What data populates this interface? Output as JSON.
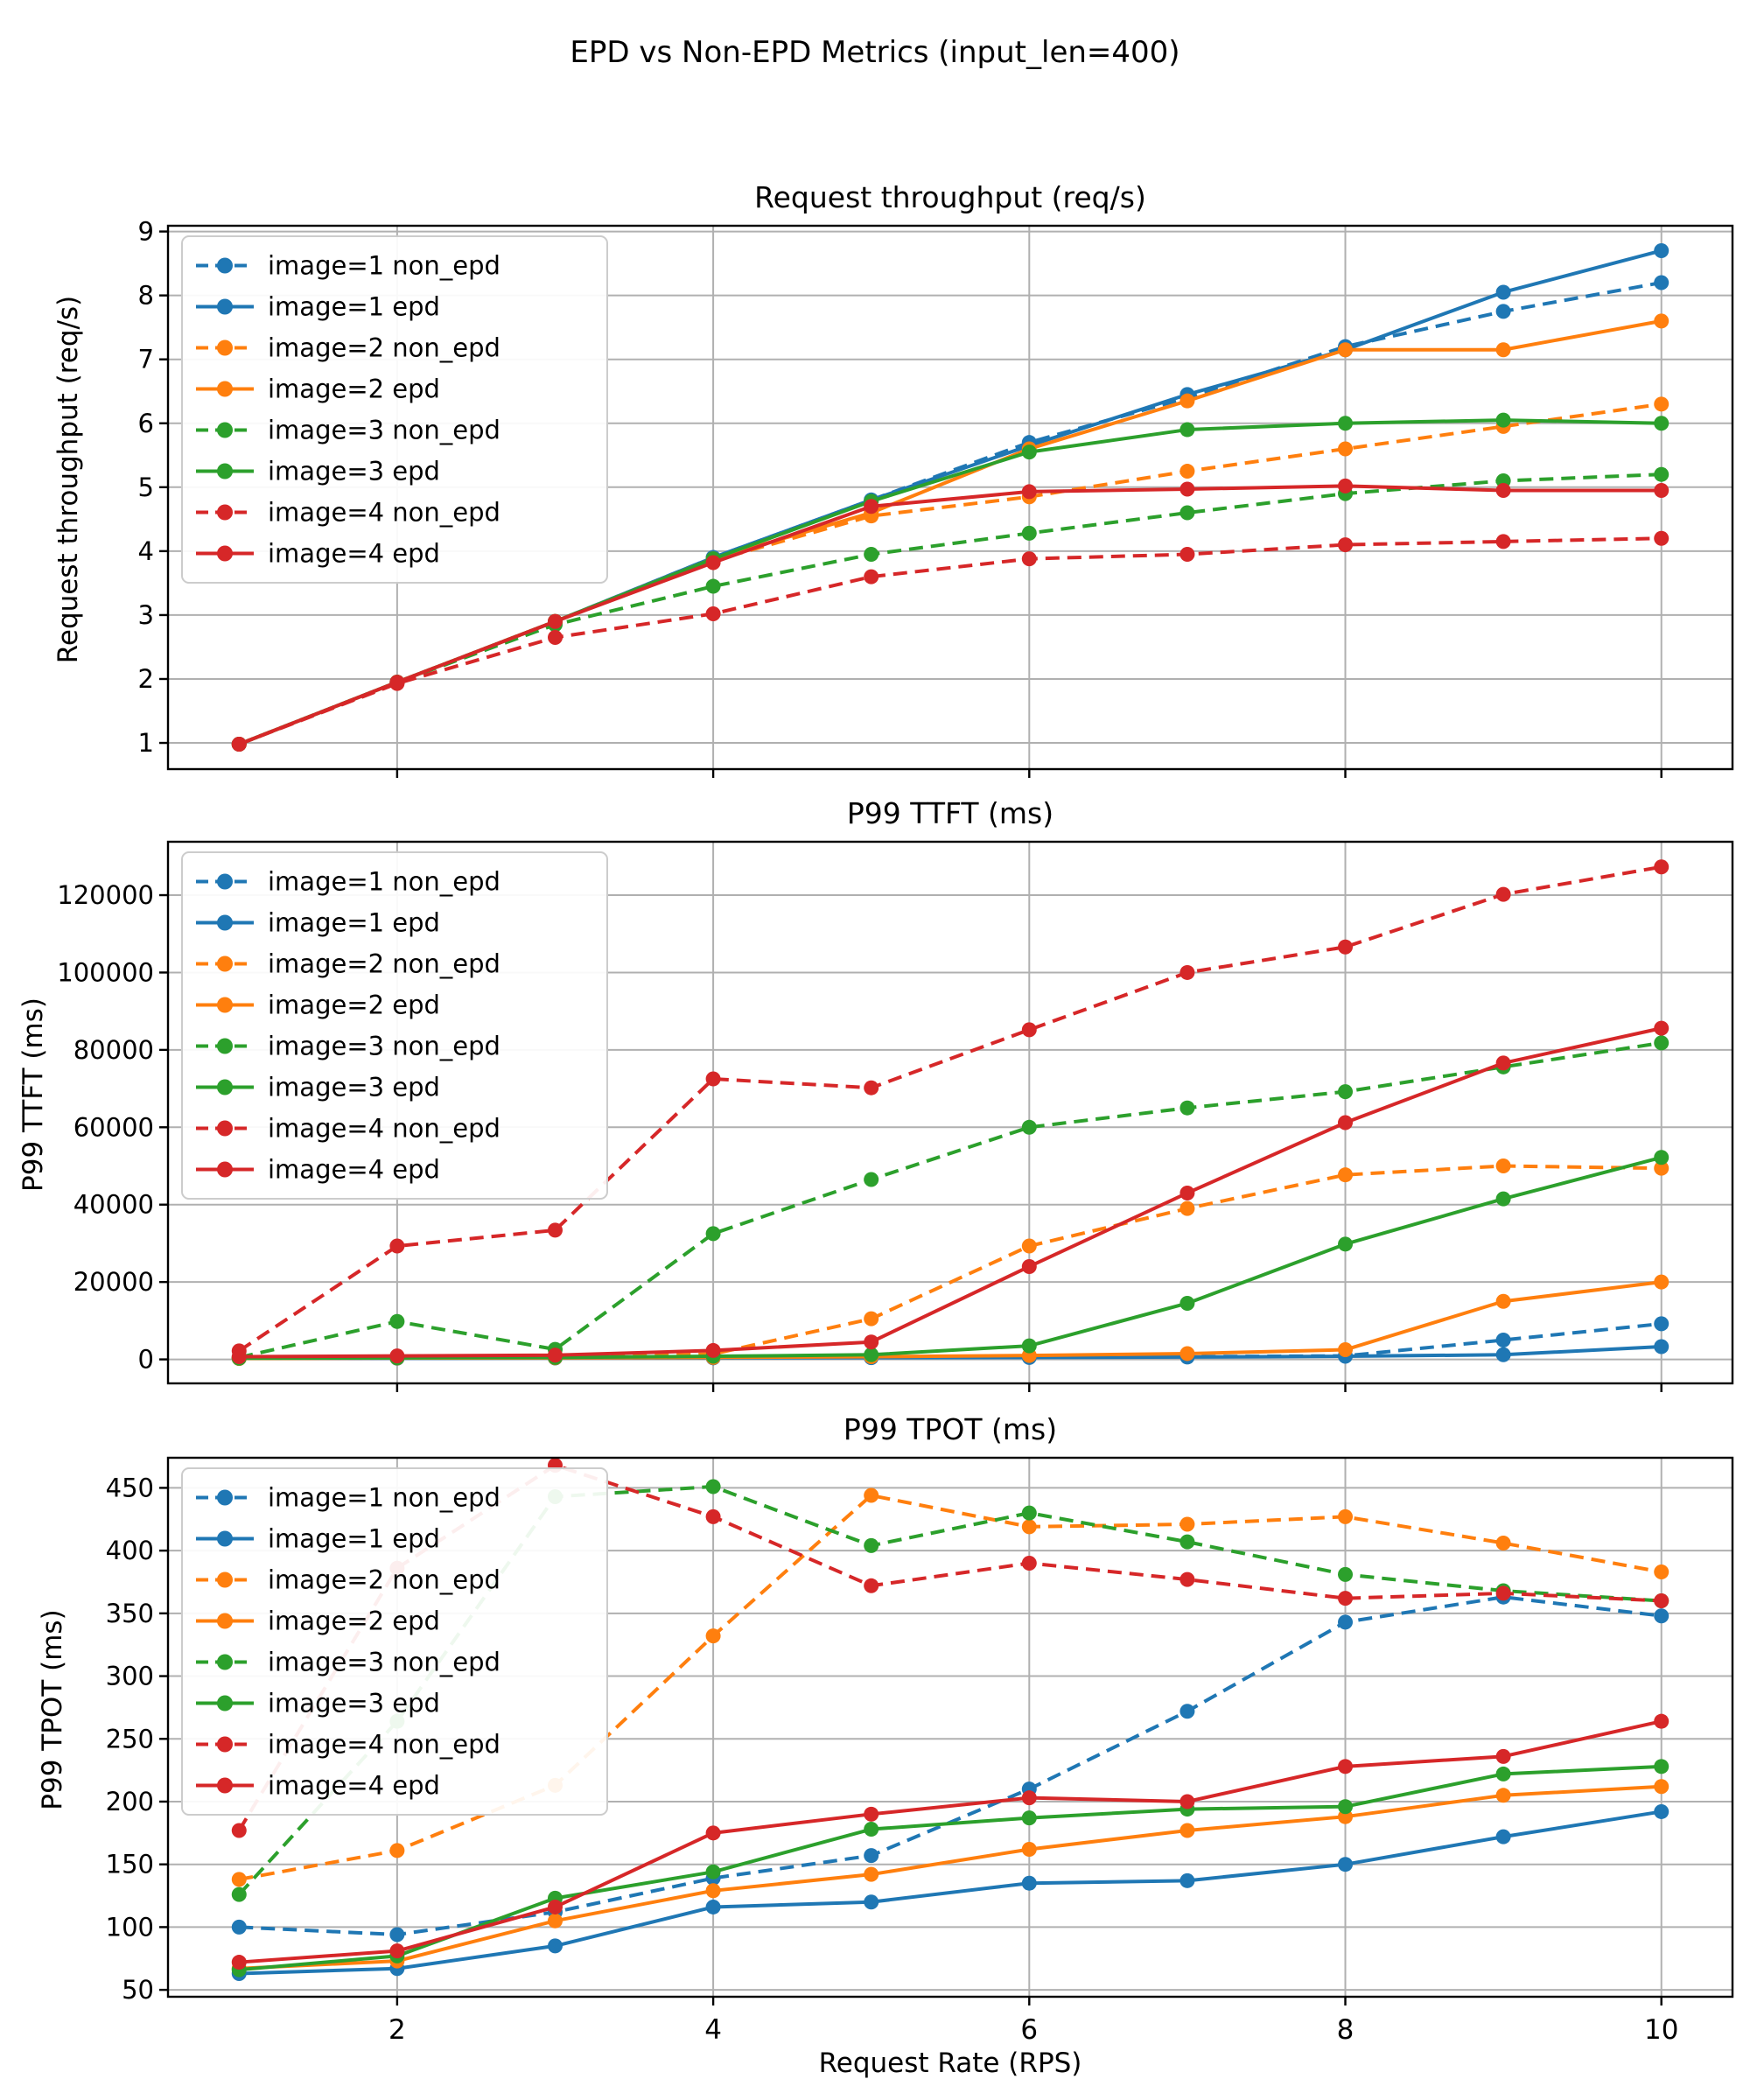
{
  "figure": {
    "title": "EPD vs Non-EPD Metrics (input_len=400)",
    "xlabel": "Request Rate (RPS)"
  },
  "colors": {
    "blue": "#1f77b4",
    "orange": "#ff7f0e",
    "green": "#2ca02c",
    "red": "#d62728",
    "grid": "#b0b0b0",
    "spine": "#000000",
    "legend_border": "#cccccc"
  },
  "chart_data": [
    {
      "type": "line",
      "title": "Request throughput (req/s)",
      "ylabel": "Request throughput (req/s)",
      "xlabel": "",
      "legend_position": "upper left",
      "grid": true,
      "x": [
        1,
        2,
        3,
        4,
        5,
        6,
        7,
        8,
        9,
        10
      ],
      "xticks": [
        2,
        4,
        6,
        8,
        10
      ],
      "xlim": [
        0.55,
        10.45
      ],
      "yticks": [
        1,
        2,
        3,
        4,
        5,
        6,
        7,
        8,
        9
      ],
      "ylim": [
        0.59,
        9.09
      ],
      "series": [
        {
          "name": "image=1 non_epd",
          "color": "blue",
          "dashed": true,
          "values": [
            0.98,
            1.95,
            2.9,
            3.9,
            4.8,
            5.7,
            6.4,
            7.2,
            7.75,
            8.2
          ]
        },
        {
          "name": "image=1 epd",
          "color": "blue",
          "dashed": false,
          "values": [
            0.98,
            1.95,
            2.9,
            3.9,
            4.8,
            5.65,
            6.45,
            7.15,
            8.05,
            8.7
          ]
        },
        {
          "name": "image=2 non_epd",
          "color": "orange",
          "dashed": true,
          "values": [
            0.98,
            1.95,
            2.9,
            3.85,
            4.55,
            4.85,
            5.25,
            5.6,
            5.95,
            6.3
          ]
        },
        {
          "name": "image=2 epd",
          "color": "orange",
          "dashed": false,
          "values": [
            0.98,
            1.95,
            2.9,
            3.88,
            4.6,
            5.6,
            6.35,
            7.15,
            7.15,
            7.6
          ]
        },
        {
          "name": "image=3 non_epd",
          "color": "green",
          "dashed": true,
          "values": [
            0.98,
            1.95,
            2.85,
            3.45,
            3.95,
            4.28,
            4.6,
            4.9,
            5.1,
            5.2
          ]
        },
        {
          "name": "image=3 epd",
          "color": "green",
          "dashed": false,
          "values": [
            0.98,
            1.95,
            2.9,
            3.88,
            4.78,
            5.55,
            5.9,
            6.0,
            6.05,
            6.0
          ]
        },
        {
          "name": "image=4 non_epd",
          "color": "red",
          "dashed": true,
          "values": [
            0.98,
            1.93,
            2.65,
            3.02,
            3.6,
            3.88,
            3.95,
            4.1,
            4.15,
            4.2
          ]
        },
        {
          "name": "image=4 epd",
          "color": "red",
          "dashed": false,
          "values": [
            0.98,
            1.95,
            2.9,
            3.82,
            4.7,
            4.93,
            4.97,
            5.02,
            4.95,
            4.95
          ]
        }
      ]
    },
    {
      "type": "line",
      "title": "P99 TTFT (ms)",
      "ylabel": "P99 TTFT (ms)",
      "xlabel": "",
      "legend_position": "upper left",
      "grid": true,
      "x": [
        1,
        2,
        3,
        4,
        5,
        6,
        7,
        8,
        9,
        10
      ],
      "xticks": [
        2,
        4,
        6,
        8,
        10
      ],
      "xlim": [
        0.55,
        10.45
      ],
      "yticks": [
        0,
        20000,
        40000,
        60000,
        80000,
        100000,
        120000
      ],
      "ylim": [
        -6200,
        133800
      ],
      "series": [
        {
          "name": "image=1 non_epd",
          "color": "blue",
          "dashed": true,
          "values": [
            300,
            350,
            400,
            450,
            500,
            600,
            700,
            900,
            5000,
            9200
          ]
        },
        {
          "name": "image=1 epd",
          "color": "blue",
          "dashed": false,
          "values": [
            250,
            300,
            350,
            400,
            450,
            500,
            600,
            800,
            1200,
            3300
          ]
        },
        {
          "name": "image=2 non_epd",
          "color": "orange",
          "dashed": true,
          "values": [
            300,
            400,
            500,
            1400,
            10500,
            29300,
            39000,
            47700,
            50000,
            49400
          ]
        },
        {
          "name": "image=2 epd",
          "color": "orange",
          "dashed": false,
          "values": [
            250,
            350,
            400,
            500,
            700,
            1000,
            1500,
            2500,
            15000,
            20000
          ]
        },
        {
          "name": "image=3 non_epd",
          "color": "green",
          "dashed": true,
          "values": [
            500,
            9800,
            2600,
            32500,
            46500,
            60000,
            65000,
            69200,
            75600,
            81800
          ]
        },
        {
          "name": "image=3 epd",
          "color": "green",
          "dashed": false,
          "values": [
            300,
            400,
            500,
            800,
            1200,
            3500,
            14500,
            29800,
            41500,
            52200
          ]
        },
        {
          "name": "image=4 non_epd",
          "color": "red",
          "dashed": true,
          "values": [
            2200,
            29300,
            33400,
            72500,
            70200,
            85200,
            100000,
            106600,
            120200,
            127300
          ]
        },
        {
          "name": "image=4 epd",
          "color": "red",
          "dashed": false,
          "values": [
            700,
            900,
            1100,
            2300,
            4500,
            24000,
            43000,
            61200,
            76600,
            85600
          ]
        }
      ]
    },
    {
      "type": "line",
      "title": "P99 TPOT (ms)",
      "ylabel": "P99 TPOT (ms)",
      "xlabel": "Request Rate (RPS)",
      "legend_position": "upper left",
      "grid": true,
      "x": [
        1,
        2,
        3,
        4,
        5,
        6,
        7,
        8,
        9,
        10
      ],
      "xticks": [
        2,
        4,
        6,
        8,
        10
      ],
      "xlim": [
        0.55,
        10.45
      ],
      "yticks": [
        50,
        100,
        150,
        200,
        250,
        300,
        350,
        400,
        450
      ],
      "ylim": [
        44.5,
        474
      ],
      "series": [
        {
          "name": "image=1 non_epd",
          "color": "blue",
          "dashed": true,
          "values": [
            100,
            94,
            112,
            139,
            157,
            210,
            272,
            343,
            363,
            348
          ]
        },
        {
          "name": "image=1 epd",
          "color": "blue",
          "dashed": false,
          "values": [
            63,
            67,
            85,
            116,
            120,
            135,
            137,
            150,
            172,
            192
          ]
        },
        {
          "name": "image=2 non_epd",
          "color": "orange",
          "dashed": true,
          "values": [
            138,
            161,
            213,
            332,
            444,
            419,
            421,
            427,
            406,
            383
          ]
        },
        {
          "name": "image=2 epd",
          "color": "orange",
          "dashed": false,
          "values": [
            67,
            73,
            105,
            129,
            142,
            162,
            177,
            188,
            205,
            212
          ]
        },
        {
          "name": "image=3 non_epd",
          "color": "green",
          "dashed": true,
          "values": [
            126,
            264,
            443,
            451,
            404,
            430,
            407,
            381,
            368,
            360
          ]
        },
        {
          "name": "image=3 epd",
          "color": "green",
          "dashed": false,
          "values": [
            66,
            77,
            123,
            144,
            178,
            187,
            194,
            196,
            222,
            228
          ]
        },
        {
          "name": "image=4 non_epd",
          "color": "red",
          "dashed": true,
          "values": [
            177,
            386,
            468,
            427,
            372,
            390,
            377,
            362,
            366,
            360
          ]
        },
        {
          "name": "image=4 epd",
          "color": "red",
          "dashed": false,
          "values": [
            72,
            81,
            116,
            175,
            190,
            203,
            200,
            228,
            236,
            264
          ]
        }
      ]
    }
  ]
}
